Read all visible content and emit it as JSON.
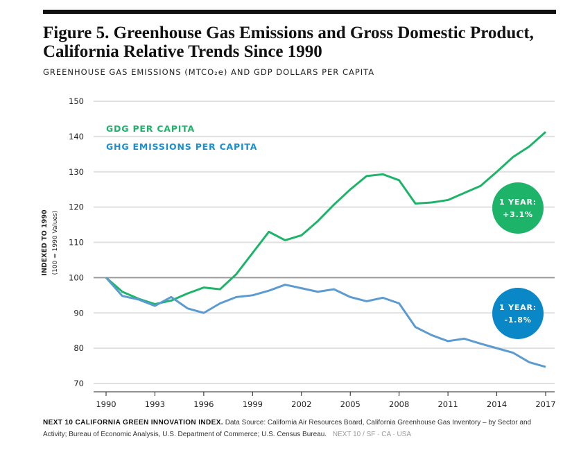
{
  "title": "Figure 5. Greenhouse Gas Emissions and Gross Domestic Product, California Relative Trends Since 1990",
  "subtitle": "GREENHOUSE GAS EMISSIONS (MTCO₂e) AND GDP DOLLARS PER CAPITA",
  "footer": {
    "bold": "NEXT 10 CALIFORNIA GREEN INNOVATION INDEX.",
    "text": "Data Source: California Air Resources Board, California Greenhouse Gas Inventory – by Sector and Activity; Bureau of Economic Analysis, U.S. Department of Commerce; U.S. Census Bureau.",
    "brand": "NEXT 10 / SF · CA · USA"
  },
  "chart_data": {
    "type": "line",
    "ylabel": "INDEXED TO 1990",
    "ylabel_sub": "(100 = 1990 Values)",
    "ylim": [
      70,
      150
    ],
    "yticks": [
      70,
      80,
      90,
      100,
      110,
      120,
      130,
      140,
      150
    ],
    "xlim": [
      1990,
      2017
    ],
    "xticks": [
      1990,
      1993,
      1996,
      1999,
      2002,
      2005,
      2008,
      2011,
      2014,
      2017
    ],
    "grid": true,
    "reference_line": 100,
    "legend_position": "top-left",
    "x": [
      1990,
      1991,
      1992,
      1993,
      1994,
      1995,
      1996,
      1997,
      1998,
      1999,
      2000,
      2001,
      2002,
      2003,
      2004,
      2005,
      2006,
      2007,
      2008,
      2009,
      2010,
      2011,
      2012,
      2013,
      2014,
      2015,
      2016,
      2017
    ],
    "series": [
      {
        "name": "GDG PER CAPITA",
        "color": "#1db46a",
        "values": [
          100,
          96,
          94,
          92.5,
          93.5,
          95.5,
          97.2,
          96.7,
          101,
          107,
          113,
          110.6,
          112,
          116,
          120.7,
          125,
          128.8,
          129.3,
          127.6,
          121,
          121.3,
          122,
          124,
          126,
          130,
          134.2,
          137.2,
          141.3
        ]
      },
      {
        "name": "GHG EMISSIONS PER CAPITA",
        "color": "#5b9bd0",
        "values": [
          100,
          94.8,
          93.8,
          92,
          94.5,
          91.3,
          90,
          92.7,
          94.5,
          95,
          96.3,
          98,
          97,
          96,
          96.7,
          94.5,
          93.3,
          94.3,
          92.7,
          86,
          83.7,
          82,
          82.7,
          81.3,
          80,
          78.7,
          76,
          74.7
        ]
      }
    ],
    "annotations": [
      {
        "line1": "1 YEAR:",
        "line2": "+3.1%",
        "color": "#1db46a"
      },
      {
        "line1": "1 YEAR:",
        "line2": "-1.8%",
        "color": "#0a87c6"
      }
    ]
  }
}
